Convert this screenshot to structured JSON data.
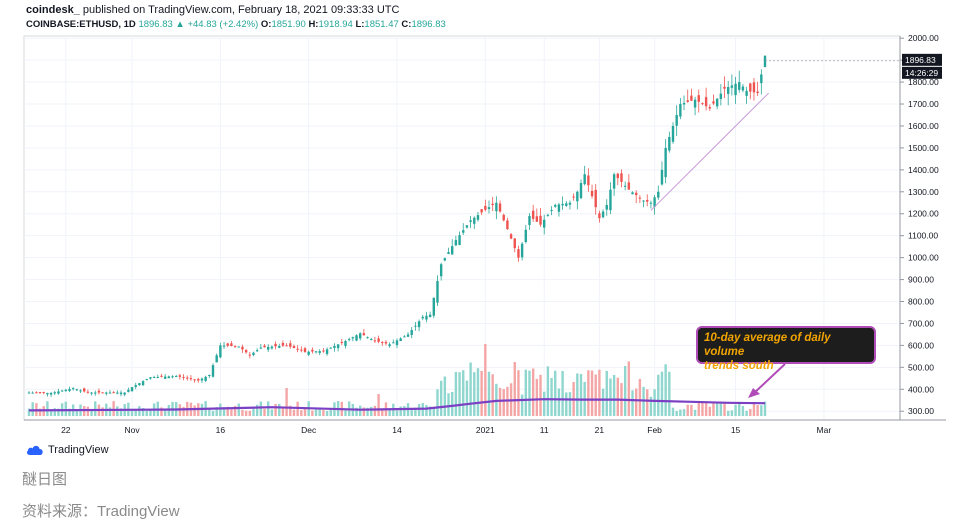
{
  "header": {
    "publisher": "coindesk_",
    "published_text": "published on TradingView.com, February 18, 2021 09:33:33 UTC",
    "symbol": "COINBASE:ETHUSD, 1D",
    "price": "1896.83",
    "change": "▲ +44.83 (+2.42%)",
    "o_label": "O:",
    "o": "1851.90",
    "h_label": "H:",
    "h": "1918.94",
    "l_label": "L:",
    "l": "1851.47",
    "c_label": "C:",
    "c": "1896.83"
  },
  "price_tag": {
    "value": "1896.83",
    "countdown": "14:26:29"
  },
  "annotation": {
    "line1": "10-day average of daily volume",
    "line2": "trends south"
  },
  "logo_text": "TradingView",
  "caption": {
    "title": "醚日图",
    "source": "资料来源：TradingView"
  },
  "colors": {
    "up": "#26a69a",
    "down": "#ef5350",
    "vol_up": "#8fd6cf",
    "vol_down": "#f4a6a6",
    "avg_line": "#7b3fc4",
    "trendline": "#c999d9",
    "annot_border": "#b04cb8",
    "annot_text": "#f2a400"
  },
  "chart_data": {
    "type": "candlestick",
    "symbol": "COINBASE:ETHUSD",
    "interval": "1D",
    "y_ticks": [
      "2000.00",
      "1900.00",
      "1800.00",
      "1700.00",
      "1600.00",
      "1500.00",
      "1400.00",
      "1300.00",
      "1200.00",
      "1100.00",
      "1000.00",
      "900.00",
      "800.00",
      "700.00",
      "600.00",
      "500.00",
      "400.00",
      "300.00"
    ],
    "x_ticks": [
      "22",
      "Nov",
      "16",
      "Dec",
      "14",
      "2021",
      "11",
      "21",
      "Feb",
      "15",
      "Mar"
    ],
    "ylim": [
      260,
      2010
    ],
    "grid": true,
    "legend": "none",
    "anchors": [
      [
        0,
        385
      ],
      [
        6,
        383
      ],
      [
        12,
        405
      ],
      [
        16,
        385
      ],
      [
        22,
        385
      ],
      [
        26,
        385
      ],
      [
        28,
        410
      ],
      [
        33,
        455
      ],
      [
        40,
        460
      ],
      [
        46,
        440
      ],
      [
        49,
        465
      ],
      [
        52,
        600
      ],
      [
        57,
        595
      ],
      [
        60,
        555
      ],
      [
        63,
        590
      ],
      [
        70,
        600
      ],
      [
        75,
        570
      ],
      [
        80,
        575
      ],
      [
        86,
        620
      ],
      [
        90,
        655
      ],
      [
        94,
        620
      ],
      [
        98,
        605
      ],
      [
        103,
        650
      ],
      [
        107,
        730
      ],
      [
        109,
        740
      ],
      [
        112,
        970
      ],
      [
        116,
        1080
      ],
      [
        120,
        1170
      ],
      [
        125,
        1230
      ],
      [
        127,
        1250
      ],
      [
        130,
        1130
      ],
      [
        133,
        1000
      ],
      [
        136,
        1190
      ],
      [
        139,
        1150
      ],
      [
        143,
        1240
      ],
      [
        147,
        1250
      ],
      [
        149,
        1300
      ],
      [
        151,
        1380
      ],
      [
        155,
        1180
      ],
      [
        157,
        1240
      ],
      [
        159,
        1380
      ],
      [
        163,
        1310
      ],
      [
        167,
        1260
      ],
      [
        169,
        1250
      ],
      [
        171,
        1300
      ],
      [
        173,
        1500
      ],
      [
        177,
        1700
      ],
      [
        181,
        1720
      ],
      [
        185,
        1680
      ],
      [
        189,
        1770
      ],
      [
        193,
        1800
      ],
      [
        195,
        1760
      ],
      [
        198,
        1750
      ],
      [
        200,
        1920
      ]
    ],
    "volume_avg_points": [
      [
        0,
        0.2
      ],
      [
        40,
        0.25
      ],
      [
        66,
        0.38
      ],
      [
        90,
        0.24
      ],
      [
        108,
        0.3
      ],
      [
        115,
        0.45
      ],
      [
        120,
        0.57
      ],
      [
        127,
        0.73
      ],
      [
        140,
        0.82
      ],
      [
        150,
        0.8
      ],
      [
        160,
        0.8
      ],
      [
        170,
        0.73
      ],
      [
        180,
        0.68
      ],
      [
        190,
        0.62
      ],
      [
        200,
        0.6
      ]
    ],
    "last_close": 1896.83
  }
}
